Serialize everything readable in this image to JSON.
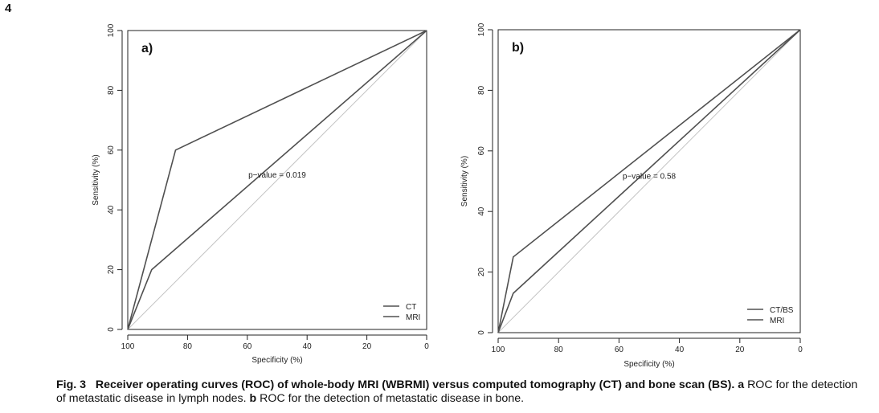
{
  "page_number": "4",
  "caption": {
    "fig_label": "Fig. 3",
    "title": "Receiver operating curves (ROC) of whole-body MRI (WBRMI) versus computed tomography (CT) and bone scan (BS).",
    "part_a_label": "a",
    "part_a_text": "ROC for the detection of metastatic disease in lymph nodes.",
    "part_b_label": "b",
    "part_b_text": "ROC for the detection of metastatic disease in bone."
  },
  "chart_data": [
    {
      "type": "line",
      "panel_label": "a)",
      "xlabel": "Specificity (%)",
      "ylabel": "Sensitivity (%)",
      "xlim": [
        100,
        0
      ],
      "ylim": [
        0,
        100
      ],
      "x_ticks": [
        100,
        80,
        60,
        40,
        20,
        0
      ],
      "y_ticks": [
        0,
        20,
        40,
        60,
        80,
        100
      ],
      "grid": false,
      "legend_position": "bottom-right",
      "annotation": "p−value = 0.019",
      "annotation_at": [
        50,
        50
      ],
      "reference_line": [
        [
          100,
          0
        ],
        [
          0,
          100
        ]
      ],
      "series": [
        {
          "name": "CT",
          "color": "#505050",
          "x": [
            100,
            84,
            0
          ],
          "y": [
            0,
            60,
            100
          ]
        },
        {
          "name": "MRI",
          "color": "#505050",
          "x": [
            100,
            92,
            0
          ],
          "y": [
            0,
            20,
            100
          ]
        }
      ]
    },
    {
      "type": "line",
      "panel_label": "b)",
      "xlabel": "Specificity (%)",
      "ylabel": "Sensitivity (%)",
      "xlim": [
        100,
        0
      ],
      "ylim": [
        0,
        100
      ],
      "x_ticks": [
        100,
        80,
        60,
        40,
        20,
        0
      ],
      "y_ticks": [
        0,
        20,
        40,
        60,
        80,
        100
      ],
      "grid": false,
      "legend_position": "bottom-right",
      "annotation": "p−value = 0.58",
      "annotation_at": [
        50,
        50
      ],
      "reference_line": [
        [
          100,
          0
        ],
        [
          0,
          100
        ]
      ],
      "series": [
        {
          "name": "CT/BS",
          "color": "#505050",
          "x": [
            100,
            95,
            0
          ],
          "y": [
            0,
            25,
            100
          ]
        },
        {
          "name": "MRI",
          "color": "#505050",
          "x": [
            100,
            95,
            0
          ],
          "y": [
            0,
            13,
            100
          ]
        }
      ]
    }
  ]
}
